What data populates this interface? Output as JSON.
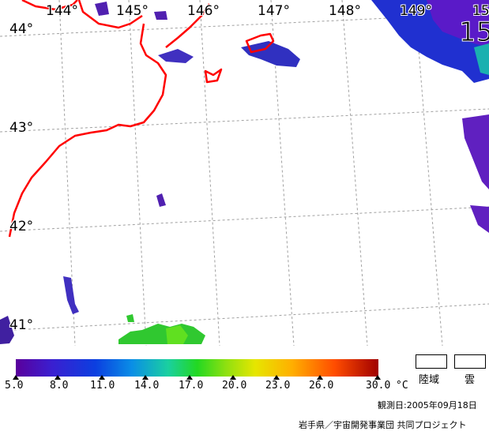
{
  "longitude_labels": [
    "144°",
    "145°",
    "146°",
    "147°",
    "148°",
    "149°",
    "15"
  ],
  "latitude_labels": [
    "44°",
    "43°",
    "42°",
    "41°"
  ],
  "overlay_label": "15",
  "legend": {
    "ticks": [
      "5.0",
      "8.0",
      "11.0",
      "14.0",
      "17.0",
      "20.0",
      "23.0",
      "26.0",
      "30.0"
    ],
    "unit": "°C",
    "land_label": "陸域",
    "cloud_label": "雲",
    "colors": [
      "#5a009c",
      "#3a1fd0",
      "#0b3fe0",
      "#0a8ee6",
      "#1ad0a0",
      "#22d822",
      "#8fe010",
      "#e6e600",
      "#ffb000",
      "#ff4c00",
      "#a00000"
    ]
  },
  "observation_date": "観測日:2005年09月18日",
  "credit": "岩手県／宇宙開発事業団 共同プロジェクト",
  "colors": {
    "coastline": "#ff0000",
    "grid": "#a0a0a0"
  }
}
